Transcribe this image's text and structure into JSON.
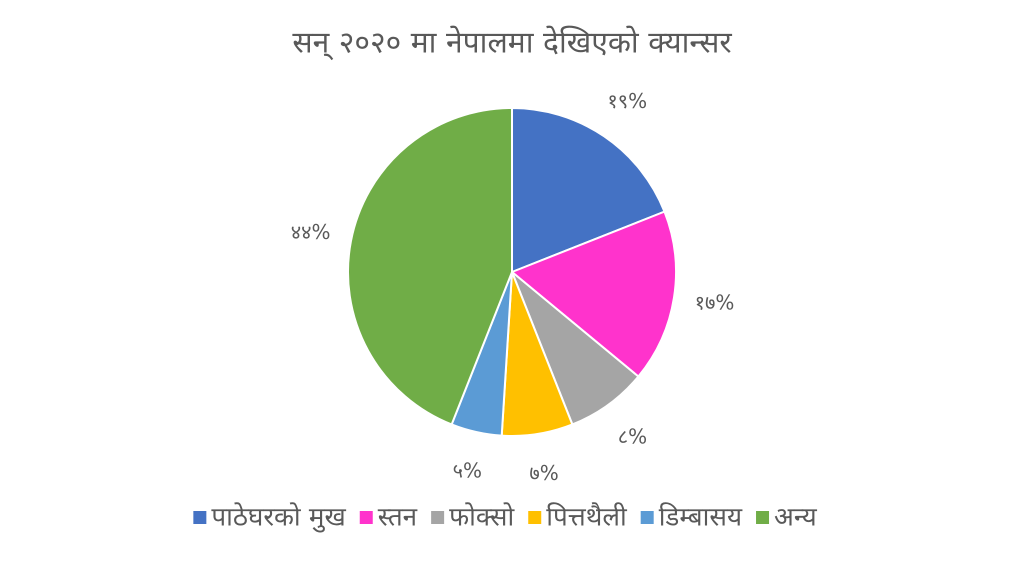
{
  "chart_data": {
    "type": "pie",
    "title": "सन् २०२० मा नेपालमा देखिएको क्यान्सर",
    "categories": [
      "पाठेघरको मुख",
      "स्तन",
      "फोक्सो",
      "पित्तथैली",
      "डिम्बासय",
      "अन्य"
    ],
    "values": [
      19,
      17,
      8,
      7,
      5,
      44
    ],
    "value_labels": [
      "१९%",
      "१७%",
      "८%",
      "७%",
      "५%",
      "४४%"
    ],
    "colors": [
      "#4472c4",
      "#ff33cc",
      "#a5a5a5",
      "#ffc000",
      "#5b9bd5",
      "#70ad47"
    ],
    "legend": "bottom"
  }
}
